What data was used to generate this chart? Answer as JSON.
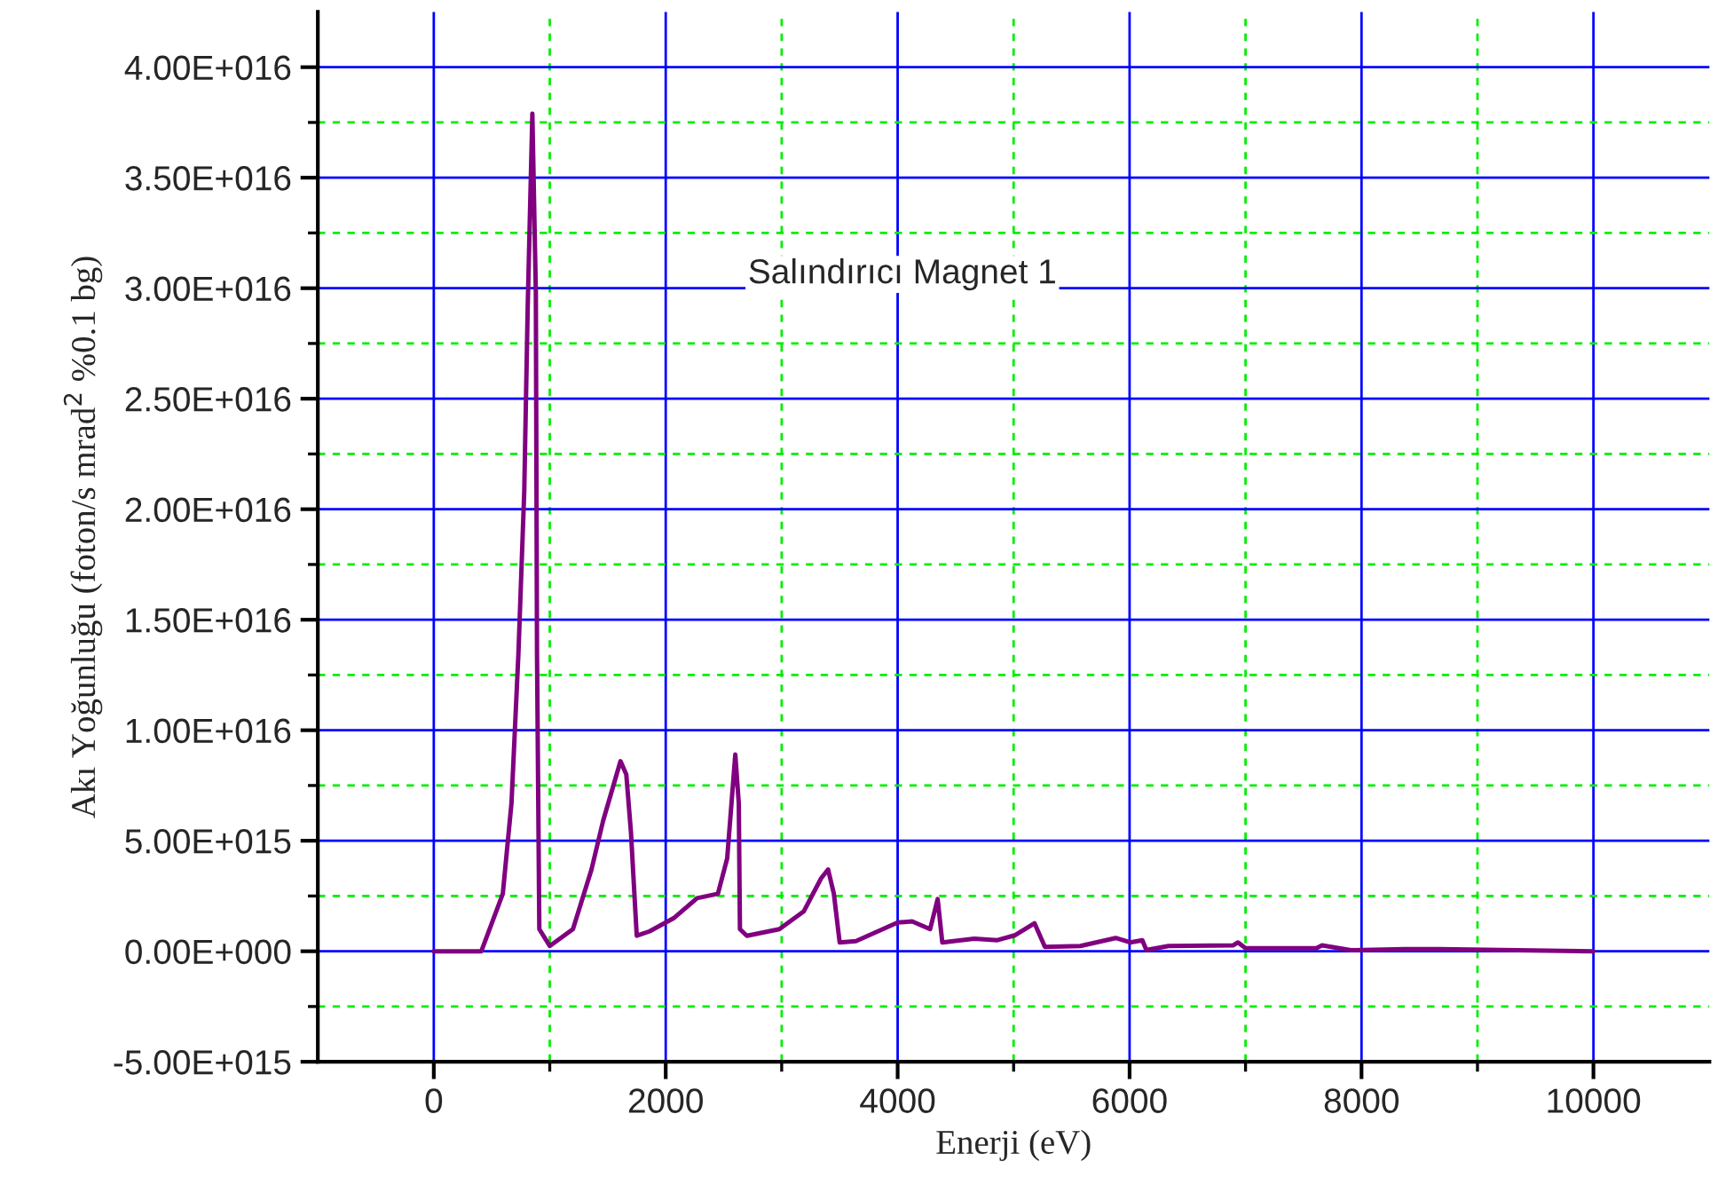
{
  "chart_data": {
    "type": "line",
    "xlabel": "Enerji (eV)",
    "ylabel": "Akı Yoğunluğu (foton/s mrad$^{2}$ %0.1 bg)",
    "annotations": [
      "Salındırıcı Magnet 1"
    ],
    "xlim": [
      -1000,
      11000
    ],
    "xticks": [
      0,
      {
        "value": 1000,
        "label": null
      },
      2000,
      {
        "value": 3000,
        "label": null
      },
      4000,
      {
        "value": 5000,
        "label": null
      },
      6000,
      {
        "value": 7000,
        "label": null
      },
      8000,
      {
        "value": 9000,
        "label": null
      },
      10000
    ],
    "ylim": [
      -5000000000000000.0,
      4.25e+16
    ],
    "yticks": [
      {
        "value": -5000000000000000.0,
        "label": "-5.00E+015"
      },
      {
        "value": -2500000000000000.0,
        "label": null
      },
      {
        "value": 0,
        "label": "0.00E+000"
      },
      {
        "value": 2500000000000000.0,
        "label": null
      },
      {
        "value": 5000000000000000.0,
        "label": "5.00E+015"
      },
      {
        "value": 7500000000000000.0,
        "label": null
      },
      {
        "value": 1e+16,
        "label": "1.00E+016"
      },
      {
        "value": 1.25e+16,
        "label": null
      },
      {
        "value": 1.5e+16,
        "label": "1.50E+016"
      },
      {
        "value": 1.75e+16,
        "label": null
      },
      {
        "value": 2e+16,
        "label": "2.00E+016"
      },
      {
        "value": 2.25e+16,
        "label": null
      },
      {
        "value": 2.5e+16,
        "label": "2.50E+016"
      },
      {
        "value": 2.75e+16,
        "label": null
      },
      {
        "value": 3e+16,
        "label": "3.00E+016"
      },
      {
        "value": 3.25e+16,
        "label": null
      },
      {
        "value": 3.5e+16,
        "label": "3.50E+016"
      },
      {
        "value": 3.75e+16,
        "label": null
      },
      {
        "value": 4e+16,
        "label": "4.00E+016"
      }
    ],
    "grid": true,
    "line_style": "solid",
    "series": [
      {
        "color": "#800080",
        "x": [
          0,
          410,
          595,
          670,
          730,
          780,
          810,
          850,
          880,
          890,
          910,
          1000,
          1200,
          1360,
          1460,
          1610,
          1660,
          1700,
          1750,
          1860,
          2070,
          2270,
          2450,
          2530,
          2600,
          2630,
          2640,
          2700,
          2980,
          3190,
          3340,
          3400,
          3450,
          3500,
          3640,
          4000,
          4125,
          4280,
          4345,
          4385,
          4660,
          4860,
          5015,
          5180,
          5270,
          5575,
          5880,
          6005,
          6110,
          6145,
          6335,
          6895,
          6935,
          7000,
          7610,
          7660,
          7910,
          8370,
          8675,
          10000
        ],
        "values": [
          0,
          0,
          2600000000000000.0,
          6700000000000000.0,
          1.35e+16,
          2.08e+16,
          2.92e+16,
          3.79e+16,
          2.98e+16,
          1.35e+16,
          1000000000000000.0,
          240000000000000.0,
          1000000000000000.0,
          3700000000000000.0,
          5900000000000000.0,
          8600000000000000.0,
          8000000000000000.0,
          5400000000000000.0,
          700000000000000.0,
          900000000000000.0,
          1500000000000000.0,
          2400000000000000.0,
          2600000000000000.0,
          4200000000000000.0,
          8900000000000000.0,
          6700000000000000.0,
          1000000000000000.0,
          700000000000000.0,
          1000000000000000.0,
          1800000000000000.0,
          3300000000000000.0,
          3700000000000000.0,
          2600000000000000.0,
          400000000000000.0,
          460000000000000.0,
          1300000000000000.0,
          1350000000000000.0,
          1000000000000000.0,
          2360000000000000.0,
          400000000000000.0,
          570000000000000.0,
          500000000000000.0,
          730000000000000.0,
          1270000000000000.0,
          200000000000000.0,
          240000000000000.0,
          600000000000000.0,
          400000000000000.0,
          500000000000000.0,
          60000000000000.0,
          240000000000000.0,
          270000000000000.0,
          400000000000000.0,
          140000000000000.0,
          140000000000000.0,
          270000000000000.0,
          50000000000000.0,
          100000000000000.0,
          100000000000000.0,
          0
        ]
      }
    ]
  }
}
